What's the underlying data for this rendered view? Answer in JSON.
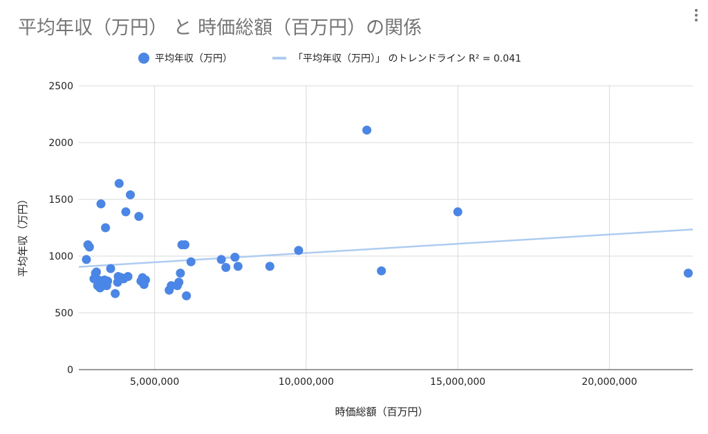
{
  "chart_data": {
    "type": "scatter",
    "title": "平均年収（万円） と 時価総額（百万円）の関係",
    "xlabel": "時価総額（百万円）",
    "ylabel": "平均年収（万円）",
    "xlim": [
      2500000,
      22750000
    ],
    "ylim": [
      0,
      2500
    ],
    "x_ticks": [
      5000000,
      10000000,
      15000000,
      20000000
    ],
    "x_tick_labels": [
      "5,000,000",
      "10,000,000",
      "15,000,000",
      "20,000,000"
    ],
    "y_ticks": [
      0,
      500,
      1000,
      1500,
      2000,
      2500
    ],
    "y_tick_labels": [
      "0",
      "500",
      "1000",
      "1500",
      "2000",
      "2500"
    ],
    "grid": true,
    "legend_position": "top",
    "legend": {
      "series_label": "平均年収（万円）",
      "trend_label": "「平均年収（万円）」 のトレンドライン R² = 0.041"
    },
    "series": [
      {
        "name": "平均年収（万円）",
        "color": "#4a86e8",
        "points": [
          [
            2750000,
            970
          ],
          [
            2800000,
            1100
          ],
          [
            2850000,
            1080
          ],
          [
            3000000,
            800
          ],
          [
            3050000,
            850
          ],
          [
            3080000,
            860
          ],
          [
            3120000,
            740
          ],
          [
            3150000,
            790
          ],
          [
            3200000,
            720
          ],
          [
            3230000,
            1460
          ],
          [
            3250000,
            770
          ],
          [
            3300000,
            740
          ],
          [
            3350000,
            790
          ],
          [
            3380000,
            1250
          ],
          [
            3420000,
            740
          ],
          [
            3450000,
            780
          ],
          [
            3550000,
            890
          ],
          [
            3700000,
            670
          ],
          [
            3780000,
            770
          ],
          [
            3800000,
            820
          ],
          [
            3830000,
            1640
          ],
          [
            3900000,
            810
          ],
          [
            3980000,
            800
          ],
          [
            4050000,
            1390
          ],
          [
            4120000,
            820
          ],
          [
            4200000,
            1540
          ],
          [
            4480000,
            1350
          ],
          [
            4550000,
            780
          ],
          [
            4600000,
            810
          ],
          [
            4650000,
            750
          ],
          [
            4700000,
            790
          ],
          [
            5480000,
            700
          ],
          [
            5550000,
            740
          ],
          [
            5750000,
            740
          ],
          [
            5800000,
            770
          ],
          [
            5850000,
            850
          ],
          [
            5900000,
            1100
          ],
          [
            6000000,
            1100
          ],
          [
            6050000,
            650
          ],
          [
            6200000,
            950
          ],
          [
            7200000,
            970
          ],
          [
            7350000,
            900
          ],
          [
            7650000,
            990
          ],
          [
            7750000,
            910
          ],
          [
            8800000,
            910
          ],
          [
            9750000,
            1050
          ],
          [
            12000000,
            2110
          ],
          [
            12480000,
            870
          ],
          [
            15000000,
            1390
          ],
          [
            22600000,
            850
          ]
        ]
      }
    ],
    "trendline": {
      "color": "#aecbf0",
      "x": [
        2500000,
        22750000
      ],
      "y": [
        905,
        1235
      ],
      "r_squared": 0.041
    }
  }
}
